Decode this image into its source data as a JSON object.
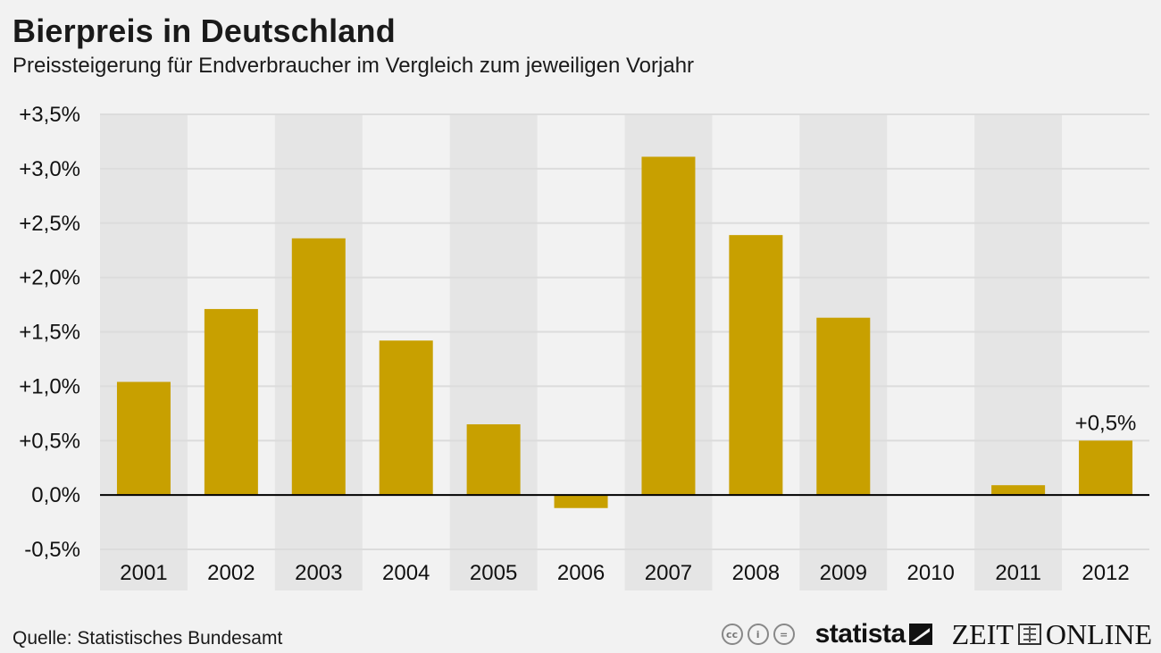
{
  "title": "Bierpreis in Deutschland",
  "subtitle": "Preissteigerung für Endverbraucher im Vergleich zum jeweiligen Vorjahr",
  "source": "Quelle: Statistisches Bundesamt",
  "logos": {
    "cc_icons": [
      "cc",
      "i",
      "="
    ],
    "statista": "statista",
    "zeit_left": "ZEIT",
    "zeit_right": "ONLINE"
  },
  "colors": {
    "bar": "#c8a000",
    "band": "#e5e5e5",
    "grid": "#dcdcdc",
    "baseline": "#000000",
    "background": "#f2f2f2"
  },
  "chart_data": {
    "type": "bar",
    "title": "Bierpreis in Deutschland",
    "subtitle": "Preissteigerung für Endverbraucher im Vergleich zum jeweiligen Vorjahr",
    "xlabel": "",
    "ylabel": "",
    "ylim": [
      -0.5,
      3.5
    ],
    "yticks": [
      3.5,
      3.0,
      2.5,
      2.0,
      1.5,
      1.0,
      0.5,
      0.0,
      -0.5
    ],
    "ytick_labels": [
      "+3,5%",
      "+3,0%",
      "+2,5%",
      "+2,0%",
      "+1,5%",
      "+1,0%",
      "+0,5%",
      "0,0%",
      "-0,5%"
    ],
    "categories": [
      "2001",
      "2002",
      "2003",
      "2004",
      "2005",
      "2006",
      "2007",
      "2008",
      "2009",
      "2010",
      "2011",
      "2012"
    ],
    "values": [
      1.04,
      1.71,
      2.36,
      1.42,
      0.65,
      -0.12,
      3.11,
      2.39,
      1.63,
      0.0,
      0.09,
      0.5
    ],
    "annotations": [
      {
        "category": "2012",
        "text": "+0,5%"
      }
    ],
    "grid": true
  }
}
